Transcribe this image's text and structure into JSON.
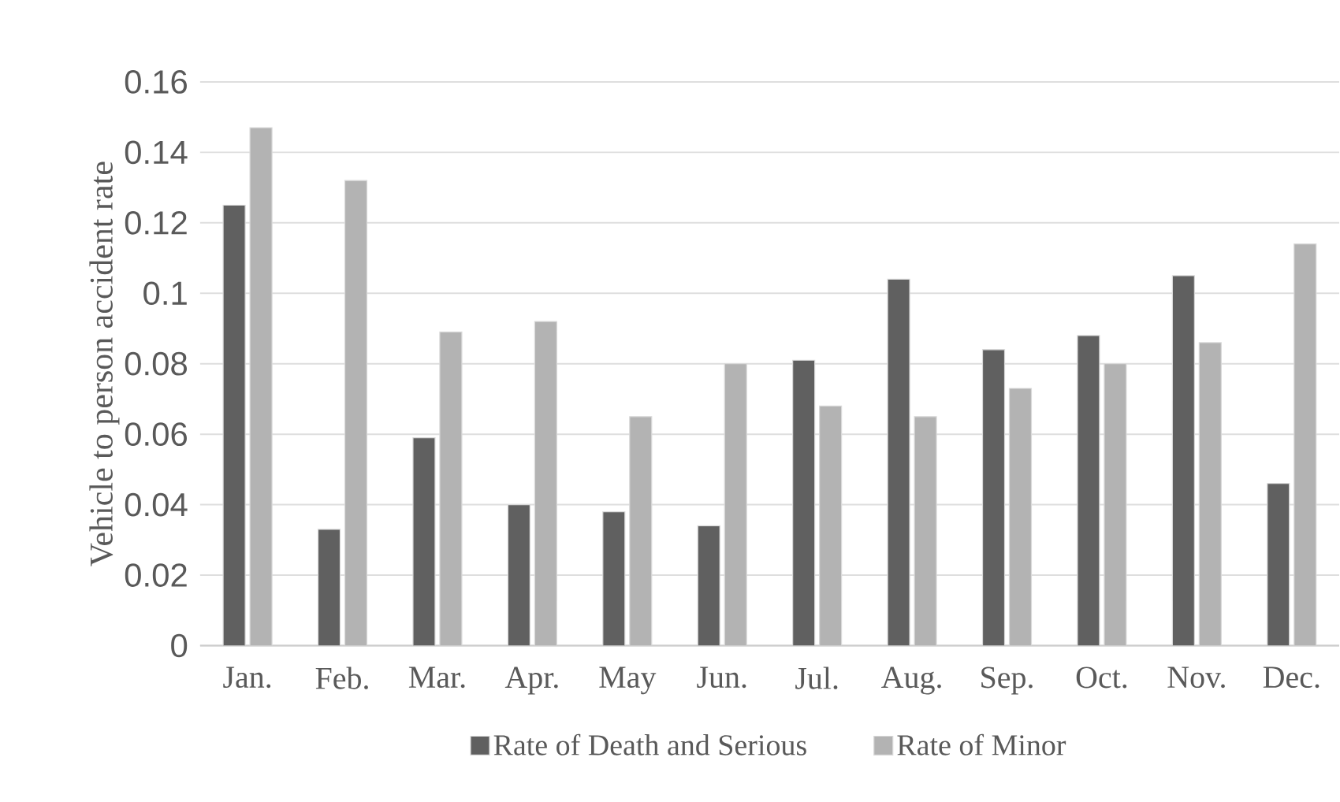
{
  "chart_data": {
    "type": "bar",
    "ylabel": "Vehicle to person accident rate",
    "categories": [
      "Jan.",
      "Feb.",
      "Mar.",
      "Apr.",
      "May",
      "Jun.",
      "Jul.",
      "Aug.",
      "Sep.",
      "Oct.",
      "Nov.",
      "Dec."
    ],
    "series": [
      {
        "name": "Rate of Death and Serious",
        "color": "#606060",
        "values": [
          0.125,
          0.033,
          0.059,
          0.04,
          0.038,
          0.034,
          0.081,
          0.104,
          0.084,
          0.088,
          0.105,
          0.046
        ]
      },
      {
        "name": "Rate of Minor",
        "color": "#b3b3b3",
        "values": [
          0.147,
          0.132,
          0.089,
          0.092,
          0.065,
          0.08,
          0.068,
          0.065,
          0.073,
          0.08,
          0.086,
          0.114
        ]
      }
    ],
    "ylim": [
      0,
      0.16
    ],
    "yticks": [
      0,
      0.02,
      0.04,
      0.06,
      0.08,
      0.1,
      0.12,
      0.14,
      0.16
    ],
    "grid": "y",
    "legend": "bottom"
  }
}
